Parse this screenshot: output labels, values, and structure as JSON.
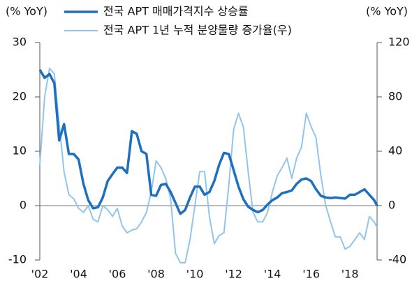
{
  "chart_data": {
    "type": "line",
    "ylabel": "(% YoY)",
    "y2label": "(% YoY)",
    "x": [
      2002.0,
      2002.25,
      2002.5,
      2002.75,
      2003.0,
      2003.25,
      2003.5,
      2003.75,
      2004.0,
      2004.25,
      2004.5,
      2004.75,
      2005.0,
      2005.25,
      2005.5,
      2005.75,
      2006.0,
      2006.25,
      2006.5,
      2006.75,
      2007.0,
      2007.25,
      2007.5,
      2007.75,
      2008.0,
      2008.25,
      2008.5,
      2008.75,
      2009.0,
      2009.25,
      2009.5,
      2009.75,
      2010.0,
      2010.25,
      2010.5,
      2010.75,
      2011.0,
      2011.25,
      2011.5,
      2011.75,
      2012.0,
      2012.25,
      2012.5,
      2012.75,
      2013.0,
      2013.25,
      2013.5,
      2013.75,
      2014.0,
      2014.25,
      2014.5,
      2014.75,
      2015.0,
      2015.25,
      2015.5,
      2015.75,
      2016.0,
      2016.25,
      2016.5,
      2016.75,
      2017.0,
      2017.25,
      2017.5,
      2017.75,
      2018.0,
      2018.25,
      2018.5,
      2018.75,
      2019.0,
      2019.25,
      2019.4
    ],
    "series": [
      {
        "name": "전국 APT 매매가격지수 상승률",
        "color": "#1f6fbf",
        "axis": "y",
        "values": [
          25,
          23.5,
          24.2,
          22.5,
          12,
          15,
          9.5,
          9.5,
          8.5,
          4,
          1,
          -0.5,
          -0.3,
          1.5,
          4.5,
          5.8,
          7,
          7,
          6,
          13.7,
          13.2,
          10,
          9.5,
          2,
          1.8,
          3.8,
          4,
          2.5,
          0.5,
          -1.5,
          -0.8,
          1.5,
          3.5,
          3.5,
          2,
          2.5,
          4.5,
          7.5,
          9.7,
          9.5,
          6.5,
          3.5,
          1.2,
          -0.2,
          -0.8,
          -1.2,
          -0.8,
          0.2,
          1,
          1.5,
          2.3,
          2.5,
          2.8,
          4,
          4.8,
          5,
          4.5,
          3,
          1.8,
          1.5,
          1.4,
          1.5,
          1.4,
          1.3,
          2,
          2,
          2.5,
          3,
          2,
          1,
          0
        ]
      },
      {
        "name": "전국 APT 1년 누적 분양물량 증가율(우)",
        "color": "#92c5ee",
        "axis": "y2",
        "values": [
          30,
          80,
          101,
          97,
          60,
          25,
          8,
          5,
          -2,
          -5,
          0,
          -10,
          -12,
          0,
          -3,
          -8,
          -2,
          -15,
          -20,
          -18,
          -17,
          -12,
          -5,
          10,
          33,
          28,
          20,
          5,
          -35,
          -42,
          -42,
          -25,
          0,
          25,
          25,
          -8,
          -28,
          -22,
          -20,
          15,
          56,
          68,
          58,
          25,
          -5,
          -12,
          -12,
          -5,
          10,
          22,
          28,
          35,
          20,
          35,
          43,
          68,
          58,
          50,
          22,
          0,
          -12,
          -23,
          -23,
          -32,
          -30,
          -25,
          -20,
          -25,
          -8,
          -12,
          -16
        ]
      }
    ],
    "xlim": [
      2002,
      2019.4
    ],
    "xticks": [
      {
        "value": 2002,
        "label": "'02"
      },
      {
        "value": 2004,
        "label": "'04"
      },
      {
        "value": 2006,
        "label": "'06"
      },
      {
        "value": 2008,
        "label": "'08"
      },
      {
        "value": 2010,
        "label": "'10"
      },
      {
        "value": 2012,
        "label": "'12"
      },
      {
        "value": 2014,
        "label": "'14"
      },
      {
        "value": 2016,
        "label": "'16"
      },
      {
        "value": 2018,
        "label": "'18"
      }
    ],
    "ylim": [
      -10,
      30
    ],
    "yticks": [
      -10,
      0,
      10,
      20,
      30
    ],
    "y2lim": [
      -40,
      120
    ],
    "y2ticks": [
      -40,
      0,
      40,
      80,
      120
    ],
    "zero_line": true
  }
}
